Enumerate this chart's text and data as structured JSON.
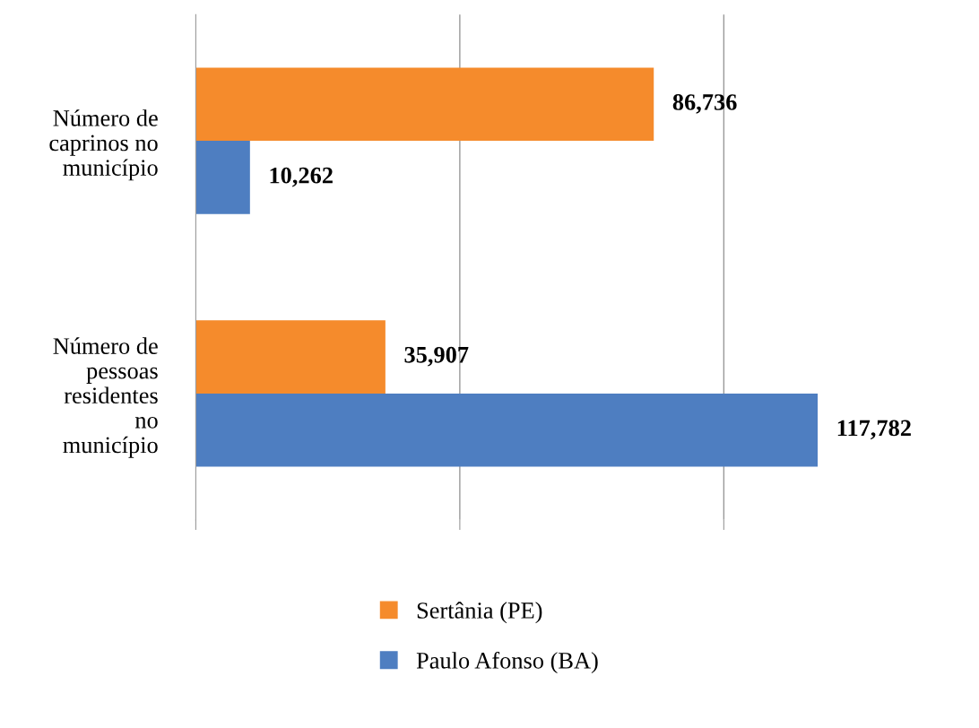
{
  "chart_data": {
    "type": "bar",
    "orientation": "horizontal",
    "categories": [
      "Número de\ncaprinos no\nmunicípio",
      "Número de\npessoas\nresidentes\nno\nmunicípio"
    ],
    "series": [
      {
        "name": "Sertânia (PE)",
        "color": "#f58b2c",
        "values": [
          86736,
          35907
        ],
        "value_labels": [
          "86,736",
          "35,907"
        ]
      },
      {
        "name": "Paulo Afonso (BA)",
        "color": "#4e7ec1",
        "values": [
          10262,
          117782
        ],
        "value_labels": [
          "10,262",
          "117,782"
        ]
      }
    ],
    "xticks": [
      {
        "value": 0,
        "label": null
      },
      {
        "value": 50000,
        "label": null
      },
      {
        "value": 100000,
        "label": null
      }
    ],
    "ref_lines": [
      {
        "axis": "x",
        "value": 50000,
        "color": "#999999"
      },
      {
        "axis": "x",
        "value": 100000,
        "color": "#999999"
      }
    ],
    "legend": "bottom"
  }
}
